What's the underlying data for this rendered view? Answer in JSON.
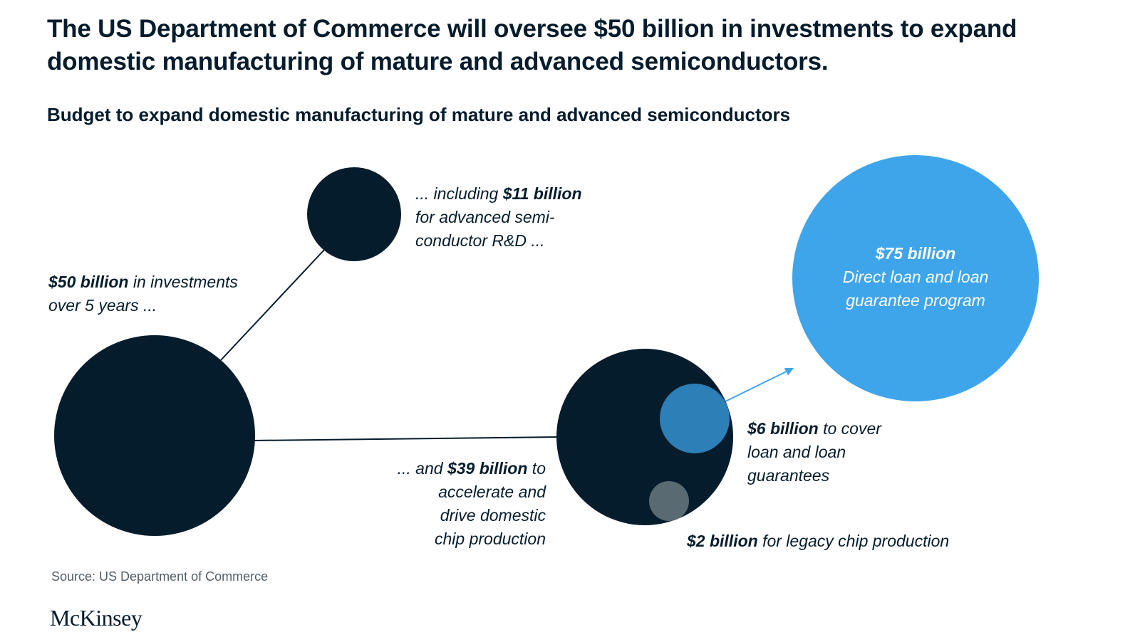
{
  "header": {
    "title": "The US Department of Commerce will oversee $50 billion in investments to expand domestic manufacturing of mature and advanced semiconductors.",
    "subtitle": "Budget to expand domestic manufacturing of mature and advanced semiconductors"
  },
  "colors": {
    "navy": "#051c2c",
    "blue": "#3fa5eb",
    "mid_blue": "#2d7fb8",
    "gray": "#5a6a73"
  },
  "nodes": {
    "total": {
      "value_text": "$50 billion",
      "line1_rest": " in investments",
      "line2": "over 5 years ..."
    },
    "rnd": {
      "line1_prefix": "... including ",
      "value_text": "$11 billion",
      "line2": "for advanced semi-",
      "line3": "conductor R&D ..."
    },
    "production": {
      "line1_prefix": "... and ",
      "value_text": "$39 billion",
      "line1_suffix": " to",
      "line2": "accelerate and",
      "line3": "drive domestic",
      "line4": "chip production"
    },
    "loan_cover": {
      "value_text": "$6 billion",
      "line1_rest": " to cover",
      "line2": "loan and loan",
      "line3": "guarantees"
    },
    "legacy": {
      "value_text": "$2 billion",
      "rest": " for legacy chip production"
    },
    "loan_program": {
      "value_text": "$75 billion",
      "line2": "Direct loan and loan",
      "line3": "guarantee program"
    }
  },
  "footer": {
    "source": "Source: US Department of Commerce",
    "logo": "McKinsey"
  }
}
